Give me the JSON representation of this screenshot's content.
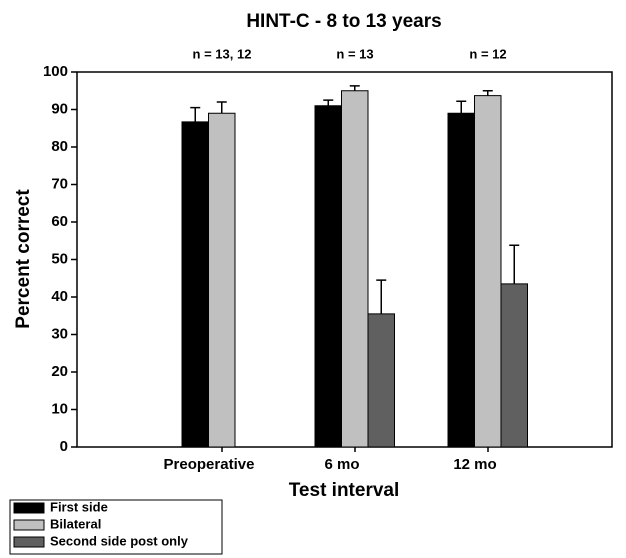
{
  "chart_data": {
    "type": "bar",
    "title": "HINT-C - 8 to 13 years",
    "xlabel": "Test interval",
    "ylabel": "Percent correct",
    "categories": [
      "Preoperative",
      "6 mo",
      "12 mo"
    ],
    "annotations": [
      "n = 13, 12",
      "n = 13",
      "n = 12"
    ],
    "series": [
      {
        "name": "First side",
        "color": "#000000",
        "values": [
          86.7,
          91,
          89
        ],
        "errors": [
          3.8,
          1.5,
          3.2
        ]
      },
      {
        "name": "Bilateral",
        "color": "#c0c0c0",
        "values": [
          89,
          95,
          93.7
        ],
        "errors": [
          3,
          1.3,
          1.3
        ]
      },
      {
        "name": "Second side post only",
        "color": "#606060",
        "values": [
          null,
          35.5,
          43.5
        ],
        "errors": [
          null,
          9,
          10.3
        ]
      }
    ],
    "ylim": [
      0,
      100
    ],
    "yticks": [
      0,
      10,
      20,
      30,
      40,
      50,
      60,
      70,
      80,
      90,
      100
    ],
    "legend": "bottom-left"
  }
}
